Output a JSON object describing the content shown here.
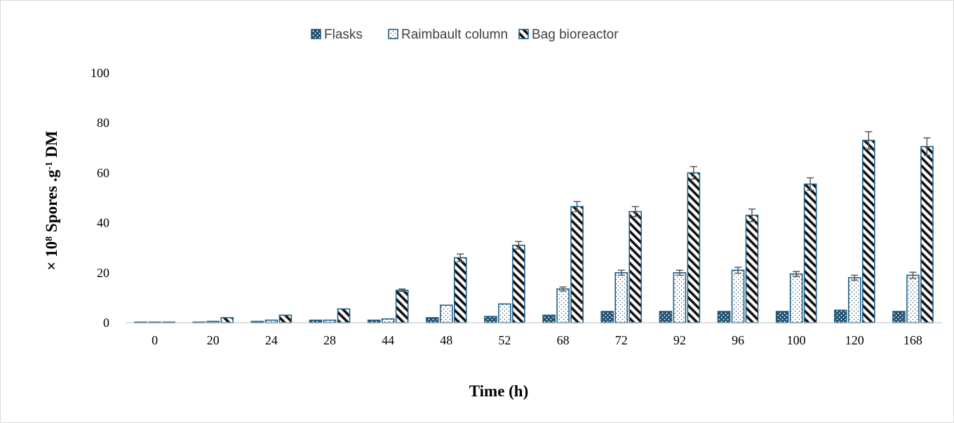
{
  "chart_data": {
    "type": "bar",
    "categories": [
      "0",
      "20",
      "24",
      "28",
      "44",
      "48",
      "52",
      "68",
      "72",
      "92",
      "96",
      "100",
      "120",
      "168"
    ],
    "series": [
      {
        "name": "Flasks",
        "pattern": "dots-dark",
        "values": [
          0,
          0,
          0.5,
          1,
          1,
          2,
          2.5,
          3,
          4.5,
          4.5,
          4.5,
          4.5,
          5,
          4.5
        ],
        "errors": [
          0,
          0,
          0,
          0,
          0,
          0,
          0,
          0,
          0,
          0,
          0,
          0,
          0,
          0
        ]
      },
      {
        "name": "Raimbault column",
        "pattern": "dots-light",
        "values": [
          0,
          0.5,
          1,
          1,
          1.5,
          7,
          7.5,
          13.5,
          20,
          20,
          21,
          19.5,
          18,
          19
        ],
        "errors": [
          0,
          0,
          0,
          0,
          0,
          0,
          0,
          0.8,
          1,
          1,
          1.2,
          1,
          1,
          1.2
        ]
      },
      {
        "name": "Bag bioreactor",
        "pattern": "diagonal",
        "values": [
          0,
          2,
          3,
          5.5,
          13,
          26,
          31,
          46.5,
          44.5,
          60,
          43,
          55.5,
          73,
          70.5
        ],
        "errors": [
          0,
          0,
          0,
          0,
          0.5,
          1.5,
          1.5,
          2,
          2,
          2.5,
          2.5,
          2.5,
          3.5,
          3.5
        ]
      }
    ],
    "xlabel": "Time (h)",
    "ylabel_parts": {
      "prefix": "× 10",
      "sup1": "8",
      "middle": " Spores .g",
      "sup2": "-1",
      "suffix": " DM"
    },
    "ylim": [
      0,
      100
    ],
    "yticks": [
      0,
      20,
      40,
      60,
      80,
      100
    ],
    "grid": false,
    "legend_position": "top-center",
    "colors": {
      "bar_outline": "#1f5f87",
      "flask_fill": "#1f4e6e",
      "error_bar": "#595959",
      "axis": "#bfbfbf"
    }
  }
}
